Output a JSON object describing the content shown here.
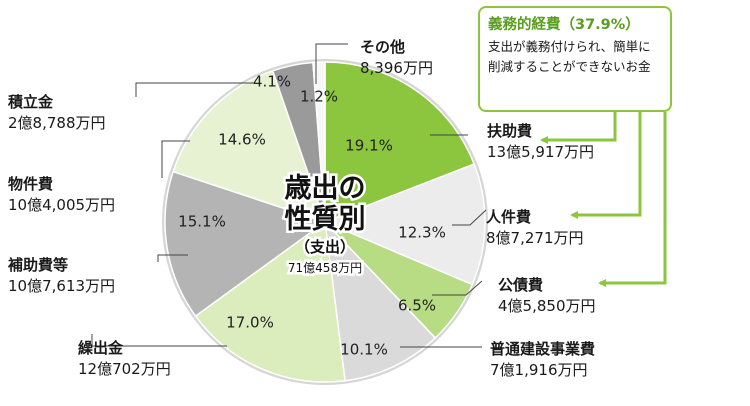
{
  "chart_data": {
    "type": "pie",
    "center_label": {
      "line1": "歳出の",
      "line2": "性質別",
      "line3": "（支出）",
      "total": "71億458万円"
    },
    "slices": [
      {
        "name": "扶助費",
        "amount": "13億5,917万円",
        "value": 19.1,
        "label": "19.1%",
        "color": "#8cc63f"
      },
      {
        "name": "人件費",
        "amount": "8億7,271万円",
        "value": 12.3,
        "label": "12.3%",
        "color": "#ececec"
      },
      {
        "name": "公債費",
        "amount": "4億5,850万円",
        "value": 6.5,
        "label": "6.5%",
        "color": "#b7dc84"
      },
      {
        "name": "普通建設事業費",
        "amount": "7億1,916万円",
        "value": 10.1,
        "label": "10.1%",
        "color": "#dadada"
      },
      {
        "name": "繰出金",
        "amount": "12億702万円",
        "value": 17.0,
        "label": "17.0%",
        "color": "#dbedbd"
      },
      {
        "name": "補助費等",
        "amount": "10億7,613万円",
        "value": 15.1,
        "label": "15.1%",
        "color": "#b4b4b4"
      },
      {
        "name": "物件費",
        "amount": "10億4,005万円",
        "value": 14.6,
        "label": "14.6%",
        "color": "#e6f2d2"
      },
      {
        "name": "積立金",
        "amount": "2億8,788万円",
        "value": 4.1,
        "label": "4.1%",
        "color": "#9a9a9a"
      },
      {
        "name": "その他",
        "amount": "8,396万円",
        "value": 1.2,
        "label": "1.2%",
        "color": "#f7f7f7"
      }
    ]
  },
  "callout": {
    "title": "義務的経費（37.9%）",
    "body": "支出が義務付けられ、簡単に削減することができないお金",
    "accent": "#8cc63f"
  }
}
